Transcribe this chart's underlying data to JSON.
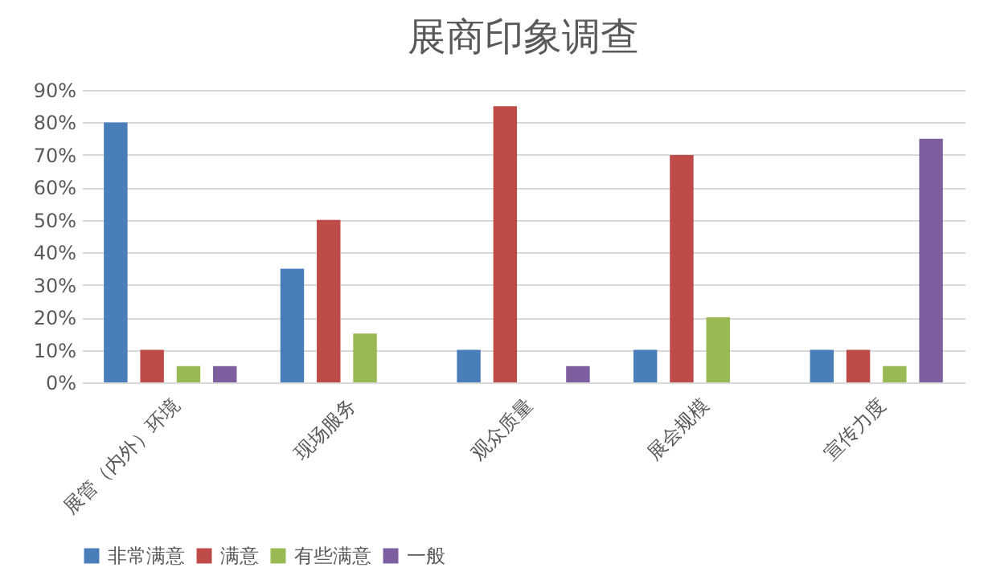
{
  "chart_data": {
    "type": "bar",
    "title": "展商印象调查",
    "categories": [
      "展管（内外）环境",
      "现场服务",
      "观众质量",
      "展会规模",
      "宣传力度"
    ],
    "series": [
      {
        "name": "非常满意",
        "color": "#4a7ebb",
        "values": [
          80,
          35,
          10,
          10,
          10
        ]
      },
      {
        "name": "满意",
        "color": "#be4b48",
        "values": [
          10,
          50,
          85,
          70,
          10
        ]
      },
      {
        "name": "有些满意",
        "color": "#98b954",
        "values": [
          5,
          15,
          null,
          20,
          5
        ]
      },
      {
        "name": "一般",
        "color": "#7d5fa0",
        "values": [
          5,
          null,
          5,
          null,
          75
        ]
      }
    ],
    "ylim": [
      0,
      90
    ],
    "yticks": [
      {
        "value": 0,
        "label": "0%"
      },
      {
        "value": 10,
        "label": "10%"
      },
      {
        "value": 20,
        "label": "20%"
      },
      {
        "value": 30,
        "label": "30%"
      },
      {
        "value": 40,
        "label": "40%"
      },
      {
        "value": 50,
        "label": "50%"
      },
      {
        "value": 60,
        "label": "60%"
      },
      {
        "value": 70,
        "label": "70%"
      },
      {
        "value": 80,
        "label": "80%"
      },
      {
        "value": 90,
        "label": "90%"
      }
    ],
    "grid": "y",
    "legend": "bottom"
  }
}
